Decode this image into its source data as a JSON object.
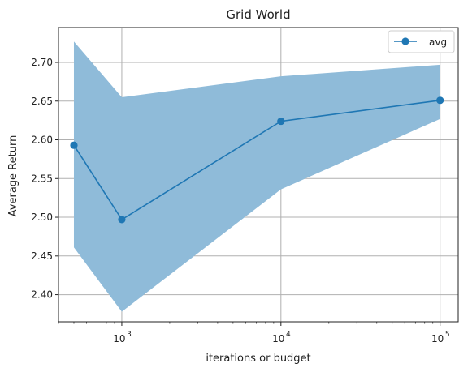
{
  "chart_data": {
    "type": "line",
    "title": "Grid World",
    "xlabel": "iterations or budget",
    "ylabel": "Average Return",
    "xscale": "log",
    "xlim": [
      400,
      130000
    ],
    "ylim": [
      2.365,
      2.745
    ],
    "grid": true,
    "legend_position": "top-right",
    "x": [
      500,
      1000,
      10000,
      100000
    ],
    "x_tick_labels": [
      {
        "base": "10",
        "exp": "3",
        "value": 1000
      },
      {
        "base": "10",
        "exp": "4",
        "value": 10000
      },
      {
        "base": "10",
        "exp": "5",
        "value": 100000
      }
    ],
    "y_ticks": [
      "2.40",
      "2.45",
      "2.50",
      "2.55",
      "2.60",
      "2.65",
      "2.70"
    ],
    "series": [
      {
        "name": "avg",
        "values": [
          2.593,
          2.497,
          2.624,
          2.651
        ],
        "band_upper": [
          2.727,
          2.655,
          2.682,
          2.697
        ],
        "band_lower": [
          2.461,
          2.378,
          2.536,
          2.627
        ],
        "color": "#1f77b4",
        "band_color": "#8fbbd9"
      }
    ]
  }
}
